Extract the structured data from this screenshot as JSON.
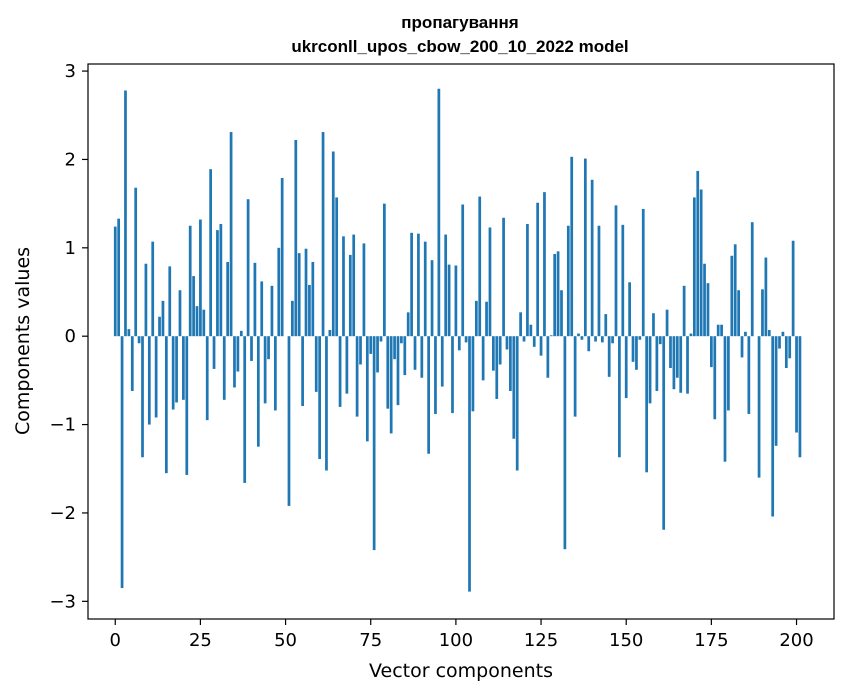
{
  "chart_data": {
    "type": "bar",
    "title_line1": "пропагування",
    "title_line2": "ukrconll_upos_cbow_200_10_2022 model",
    "xlabel": "Vector components",
    "ylabel": "Components values",
    "xlim": [
      -8,
      211
    ],
    "ylim": [
      -3.2,
      3.08
    ],
    "x_ticks": [
      0,
      25,
      50,
      75,
      100,
      125,
      150,
      175,
      200
    ],
    "x_tick_labels": [
      "0",
      "25",
      "50",
      "75",
      "100",
      "125",
      "150",
      "175",
      "200"
    ],
    "y_ticks": [
      -3,
      -2,
      -1,
      0,
      1,
      2,
      3
    ],
    "y_tick_labels": [
      "−3",
      "−2",
      "−1",
      "0",
      "1",
      "2",
      "3"
    ],
    "bar_color": "#1f77b4",
    "grid": false,
    "values": [
      1.24,
      1.33,
      -2.85,
      2.78,
      0.08,
      -0.62,
      1.68,
      -0.08,
      -1.37,
      0.82,
      -1.0,
      1.07,
      -0.92,
      0.22,
      0.4,
      -1.55,
      0.79,
      -0.83,
      -0.75,
      0.52,
      -0.72,
      -1.57,
      1.25,
      0.68,
      0.34,
      1.32,
      0.3,
      -0.95,
      1.89,
      -0.37,
      1.2,
      1.27,
      -0.72,
      0.84,
      2.31,
      -0.58,
      -0.4,
      0.06,
      -1.66,
      1.55,
      -0.28,
      0.83,
      -1.25,
      0.62,
      -0.76,
      -0.26,
      0.57,
      -0.84,
      1.0,
      1.79,
      0.0,
      -1.92,
      0.4,
      2.22,
      0.94,
      -0.79,
      0.99,
      0.58,
      0.84,
      -0.63,
      -1.39,
      2.31,
      -1.52,
      0.07,
      2.09,
      1.57,
      -0.8,
      1.13,
      -0.65,
      0.92,
      1.15,
      -0.91,
      -0.32,
      1.05,
      -1.19,
      -0.2,
      -2.42,
      -0.41,
      -0.06,
      1.5,
      -0.82,
      -1.1,
      -0.26,
      -0.78,
      -0.08,
      -0.44,
      0.27,
      1.17,
      -0.38,
      1.16,
      -0.47,
      1.07,
      -1.33,
      0.86,
      -0.88,
      2.8,
      -0.57,
      1.15,
      0.81,
      -0.87,
      0.8,
      -0.16,
      1.49,
      -0.07,
      -2.89,
      -0.85,
      0.4,
      1.58,
      -0.5,
      0.39,
      1.23,
      -0.39,
      -0.71,
      -0.32,
      1.34,
      -0.15,
      -0.62,
      -1.16,
      -1.52,
      0.27,
      -0.06,
      1.27,
      0.13,
      -0.12,
      1.51,
      -0.22,
      1.63,
      -0.47,
      0.01,
      0.93,
      0.96,
      0.52,
      -2.41,
      1.25,
      2.03,
      -0.91,
      0.03,
      -0.04,
      2.01,
      -0.17,
      1.77,
      -0.06,
      1.25,
      -0.07,
      0.25,
      -0.46,
      -0.08,
      1.48,
      -1.37,
      1.26,
      -0.7,
      0.61,
      -0.29,
      -0.38,
      -0.04,
      1.44,
      -1.54,
      -0.76,
      0.26,
      -0.62,
      -0.09,
      -2.19,
      0.3,
      -0.36,
      -0.6,
      -0.47,
      -0.64,
      0.57,
      -0.65,
      0.03,
      1.57,
      1.87,
      1.66,
      0.82,
      0.6,
      -0.35,
      -0.94,
      0.13,
      0.13,
      -1.42,
      -0.84,
      0.91,
      1.04,
      0.52,
      -0.24,
      0.05,
      -0.88,
      1.29,
      0.0,
      -1.6,
      0.53,
      0.89,
      0.07,
      -2.04,
      -1.24,
      -0.14,
      0.05,
      -0.36,
      -0.25,
      1.08,
      -1.09,
      -1.37
    ]
  }
}
